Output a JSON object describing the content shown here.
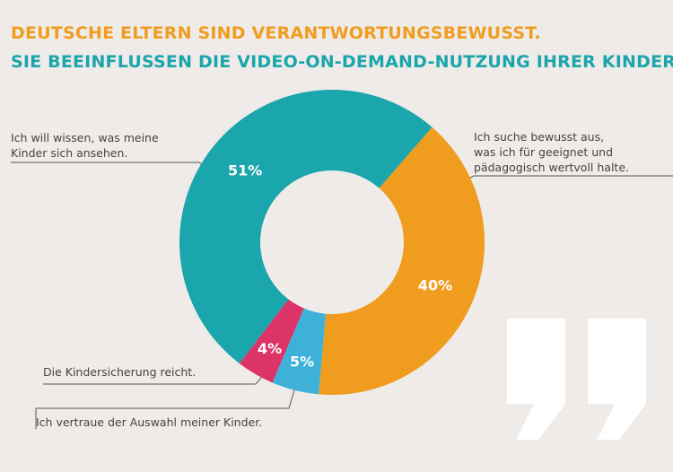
{
  "chart_data": {
    "type": "donut",
    "title": "DEUTSCHE ELTERN SIND VERANTWORTUNGSBEWUSST.",
    "subtitle": "SIE BEEINFLUSSEN DIE VIDEO-ON-DEMAND-NUTZUNG IHRER KINDER.",
    "categories": [
      "Ich suche bewusst aus,\nwas ich für geeignet und\npädagogisch wertvoll halte.",
      "Ich vertraue der Auswahl meiner Kinder.",
      "Die Kindersicherung reicht.",
      "Ich will wissen, was meine\nKinder sich ansehen."
    ],
    "values": [
      40,
      5,
      4,
      51
    ],
    "value_labels": [
      "40%",
      "5%",
      "4%",
      "51%"
    ],
    "colors": [
      "#f09c1f",
      "#3eb1d8",
      "#dc3468",
      "#1ba5ac"
    ]
  }
}
